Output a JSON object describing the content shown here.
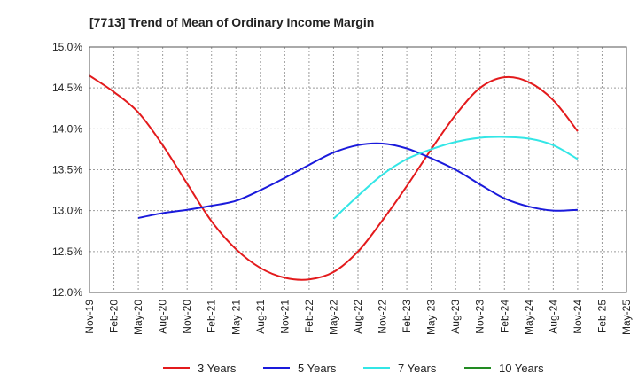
{
  "chart_data": {
    "type": "line",
    "title": "[7713]  Trend of Mean of Ordinary Income Margin",
    "xlabel": "",
    "ylabel": "",
    "x_ticks": [
      "Nov-19",
      "Feb-20",
      "May-20",
      "Aug-20",
      "Nov-20",
      "Feb-21",
      "May-21",
      "Aug-21",
      "Nov-21",
      "Feb-22",
      "May-22",
      "Aug-22",
      "Nov-22",
      "Feb-23",
      "May-23",
      "Aug-23",
      "Nov-23",
      "Feb-24",
      "May-24",
      "Aug-24",
      "Nov-24",
      "Feb-25",
      "May-25"
    ],
    "y_ticks": [
      "12.0%",
      "12.5%",
      "13.0%",
      "13.5%",
      "14.0%",
      "14.5%",
      "15.0%"
    ],
    "ylim": [
      12.0,
      15.0
    ],
    "grid": true,
    "legend_position": "bottom",
    "series": [
      {
        "name": "3 Years",
        "color": "#e31a1c",
        "x": [
          "Nov-19",
          "Feb-20",
          "May-20",
          "Aug-20",
          "Nov-20",
          "Feb-21",
          "May-21",
          "Aug-21",
          "Nov-21",
          "Feb-22",
          "May-22",
          "Aug-22",
          "Nov-22",
          "Feb-23",
          "May-23",
          "Aug-23",
          "Nov-23",
          "Feb-24",
          "May-24",
          "Aug-24",
          "Nov-24"
        ],
        "values": [
          14.65,
          14.45,
          14.2,
          13.8,
          13.33,
          12.87,
          12.53,
          12.3,
          12.18,
          12.16,
          12.25,
          12.5,
          12.88,
          13.3,
          13.75,
          14.17,
          14.5,
          14.63,
          14.57,
          14.35,
          13.97
        ]
      },
      {
        "name": "5 Years",
        "color": "#1a1adb",
        "x": [
          "May-20",
          "Aug-20",
          "Nov-20",
          "Feb-21",
          "May-21",
          "Aug-21",
          "Nov-21",
          "Feb-22",
          "May-22",
          "Aug-22",
          "Nov-22",
          "Feb-23",
          "May-23",
          "Aug-23",
          "Nov-23",
          "Feb-24",
          "May-24",
          "Aug-24",
          "Nov-24"
        ],
        "values": [
          12.91,
          12.97,
          13.01,
          13.06,
          13.12,
          13.25,
          13.4,
          13.56,
          13.71,
          13.8,
          13.82,
          13.76,
          13.64,
          13.5,
          13.32,
          13.15,
          13.05,
          13.0,
          13.01
        ]
      },
      {
        "name": "7 Years",
        "color": "#33e6e6",
        "x": [
          "May-22",
          "Aug-22",
          "Nov-22",
          "Feb-23",
          "May-23",
          "Aug-23",
          "Nov-23",
          "Feb-24",
          "May-24",
          "Aug-24",
          "Nov-24"
        ],
        "values": [
          12.9,
          13.18,
          13.44,
          13.63,
          13.75,
          13.84,
          13.89,
          13.9,
          13.88,
          13.8,
          13.63
        ]
      },
      {
        "name": "10 Years",
        "color": "#228b22",
        "x": [],
        "values": []
      }
    ]
  }
}
